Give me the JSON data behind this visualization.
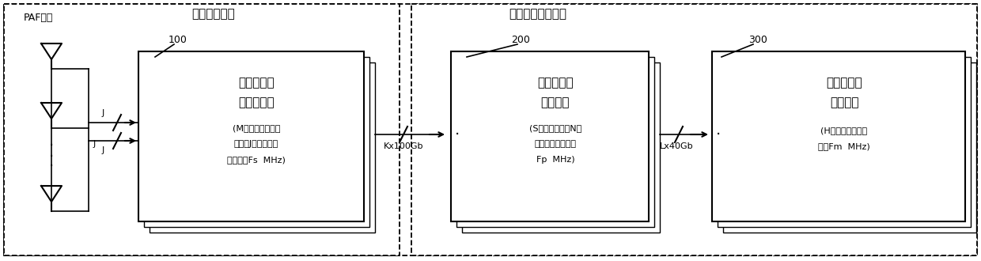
{
  "fig_width": 12.4,
  "fig_height": 3.3,
  "dpi": 100,
  "labels": {
    "paf": "PAF阵元",
    "telescope": "望远镜主焦点",
    "digital": "数字信号处理机房",
    "box1_line1": "信号采集与",
    "box1_line2": "预处理单元",
    "box1_sub1": "(M个节点，每个节",
    "box1_sub2": "点采集J个通道，采",
    "box1_sub3": "样带宽为Fs  MHz)",
    "box2_line1": "相关与波束",
    "box2_line2": "合成单元",
    "box2_sub1": "(S个节点，合成N个",
    "box2_sub2": "波束，处理带宽为",
    "box2_sub3": "Fp  MHz)",
    "box3_line1": "多波束天文",
    "box3_line2": "处理单元",
    "box3_sub1": "(H个节点，处理带",
    "box3_sub2": "宽为Fm  MHz)",
    "link1": "Kx100Gb",
    "link2": "Lx40Gb",
    "num100": "100",
    "num200": "200",
    "num300": "300"
  },
  "bg_color": "#ffffff"
}
